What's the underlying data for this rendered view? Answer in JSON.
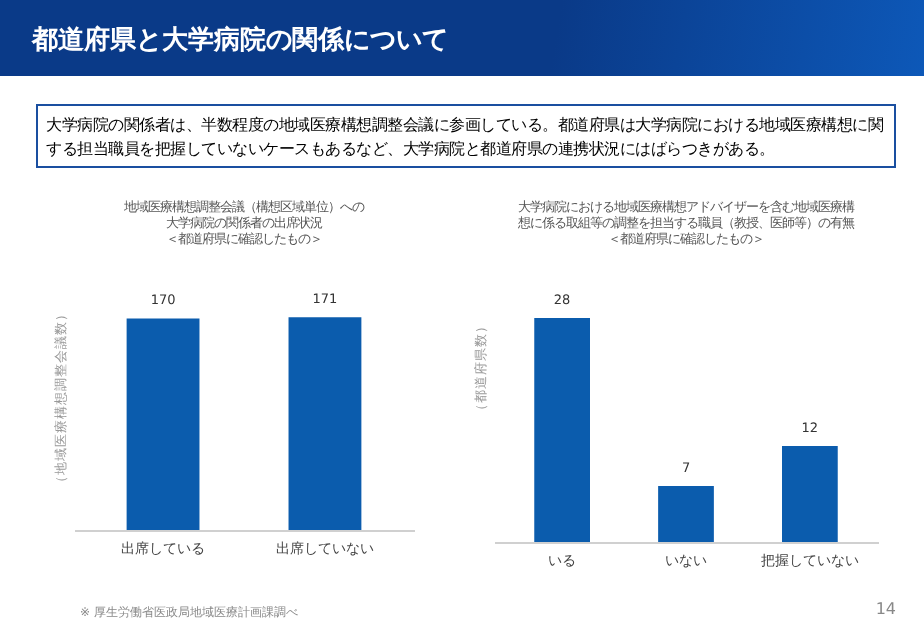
{
  "chart_data": [
    {
      "type": "other",
      "title": "都道府県と大学病院の関係について",
      "annotations": [
        "大学病院の関係者は、半数程度の地域医療構想調整会議に参画している。都道府県は大学病院における地域医療構想に関する担当職員を把握していないケースもあるなど、大学病院と都道府県の連携状況にはばらつきがある。"
      ]
    },
    {
      "type": "bar",
      "title": "地域医療構想調整会議（構想区域単位）への大学病院の関係者の出席状況",
      "subtitle": "＜都道府県に確認したもの＞",
      "ylabel": "（地域医療構想調整会議数）",
      "categories": [
        "出席している",
        "出席していない"
      ],
      "values": [
        170,
        171
      ],
      "color": "#0b5cad",
      "data_labels": true,
      "annotations": [
        "※ 厚生労働省医政局地域医療計画課調べ"
      ]
    },
    {
      "type": "bar",
      "title": "大学病院における地域医療構想アドバイザーを含む地域医療構想に係る取組等の調整を担当する職員（教授、医師等）の有無",
      "subtitle": "＜都道府県に確認したもの＞",
      "ylabel": "（都道府県数）",
      "categories": [
        "いる",
        "いない",
        "把握していない"
      ],
      "values": [
        28,
        7,
        12
      ],
      "color": "#0b5cad",
      "data_labels": true,
      "annotations": [
        "14"
      ]
    }
  ]
}
